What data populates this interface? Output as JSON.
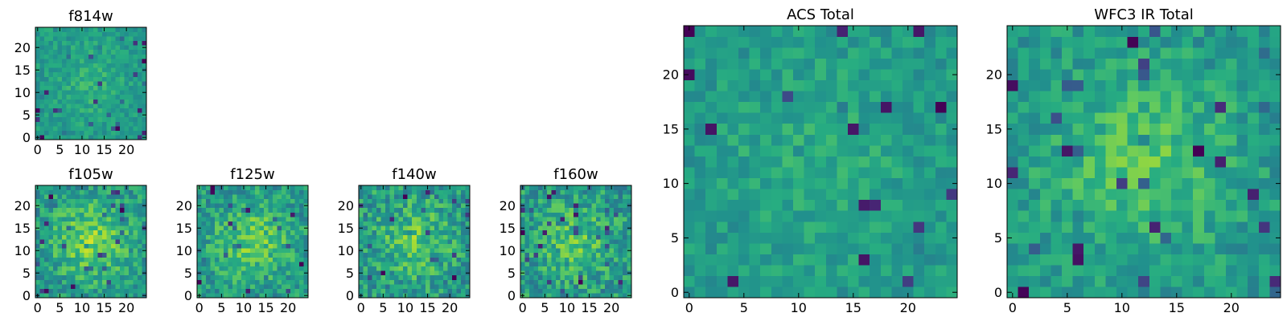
{
  "chart_data": [
    {
      "id": "f814w",
      "type": "heatmap",
      "title": "f814w",
      "xlabel": "",
      "ylabel": "",
      "grid_size": [
        25,
        25
      ],
      "xlim": [
        -0.5,
        24.5
      ],
      "ylim": [
        -0.5,
        24.5
      ],
      "xticks": [
        0,
        5,
        10,
        15,
        20
      ],
      "yticks": [
        0,
        5,
        10,
        15,
        20
      ],
      "colormap": "viridis",
      "value_range": [
        0,
        1
      ],
      "seed": 814,
      "noise_scale": 0.1,
      "center_boost": 0.1,
      "values": []
    },
    {
      "id": "f105w",
      "type": "heatmap",
      "title": "f105w",
      "xlabel": "",
      "ylabel": "",
      "grid_size": [
        25,
        25
      ],
      "xlim": [
        -0.5,
        24.5
      ],
      "ylim": [
        -0.5,
        24.5
      ],
      "xticks": [
        0,
        5,
        10,
        15,
        20
      ],
      "yticks": [
        0,
        5,
        10,
        15,
        20
      ],
      "colormap": "viridis",
      "value_range": [
        0,
        1
      ],
      "seed": 105,
      "noise_scale": 0.16,
      "center_boost": 0.28,
      "values": []
    },
    {
      "id": "f125w",
      "type": "heatmap",
      "title": "f125w",
      "xlabel": "",
      "ylabel": "",
      "grid_size": [
        25,
        25
      ],
      "xlim": [
        -0.5,
        24.5
      ],
      "ylim": [
        -0.5,
        24.5
      ],
      "xticks": [
        0,
        5,
        10,
        15,
        20
      ],
      "yticks": [
        0,
        5,
        10,
        15,
        20
      ],
      "colormap": "viridis",
      "value_range": [
        0,
        1
      ],
      "seed": 125,
      "noise_scale": 0.16,
      "center_boost": 0.24,
      "values": []
    },
    {
      "id": "f140w",
      "type": "heatmap",
      "title": "f140w",
      "xlabel": "",
      "ylabel": "",
      "grid_size": [
        25,
        25
      ],
      "xlim": [
        -0.5,
        24.5
      ],
      "ylim": [
        -0.5,
        24.5
      ],
      "xticks": [
        0,
        5,
        10,
        15,
        20
      ],
      "yticks": [
        0,
        5,
        10,
        15,
        20
      ],
      "colormap": "viridis",
      "value_range": [
        0,
        1
      ],
      "seed": 140,
      "noise_scale": 0.18,
      "center_boost": 0.2,
      "values": []
    },
    {
      "id": "f160w",
      "type": "heatmap",
      "title": "f160w",
      "xlabel": "",
      "ylabel": "",
      "grid_size": [
        25,
        25
      ],
      "xlim": [
        -0.5,
        24.5
      ],
      "ylim": [
        -0.5,
        24.5
      ],
      "xticks": [
        0,
        5,
        10,
        15,
        20
      ],
      "yticks": [
        0,
        5,
        10,
        15,
        20
      ],
      "colormap": "viridis",
      "value_range": [
        0,
        1
      ],
      "seed": 160,
      "noise_scale": 0.18,
      "center_boost": 0.18,
      "values": []
    },
    {
      "id": "acs-total",
      "type": "heatmap",
      "title": "ACS Total",
      "xlabel": "",
      "ylabel": "",
      "grid_size": [
        25,
        25
      ],
      "xlim": [
        -0.5,
        24.5
      ],
      "ylim": [
        -0.5,
        24.5
      ],
      "xticks": [
        0,
        5,
        10,
        15,
        20
      ],
      "yticks": [
        0,
        5,
        10,
        15,
        20
      ],
      "colormap": "viridis",
      "value_range": [
        0,
        1
      ],
      "seed": 2001,
      "noise_scale": 0.1,
      "center_boost": 0.08,
      "values": []
    },
    {
      "id": "wfc3-ir-total",
      "type": "heatmap",
      "title": "WFC3 IR Total",
      "xlabel": "",
      "ylabel": "",
      "grid_size": [
        25,
        25
      ],
      "xlim": [
        -0.5,
        24.5
      ],
      "ylim": [
        -0.5,
        24.5
      ],
      "xticks": [
        0,
        5,
        10,
        15,
        20
      ],
      "yticks": [
        0,
        5,
        10,
        15,
        20
      ],
      "colormap": "viridis",
      "value_range": [
        0,
        1
      ],
      "seed": 3001,
      "noise_scale": 0.12,
      "center_boost": 0.2,
      "values": []
    }
  ]
}
